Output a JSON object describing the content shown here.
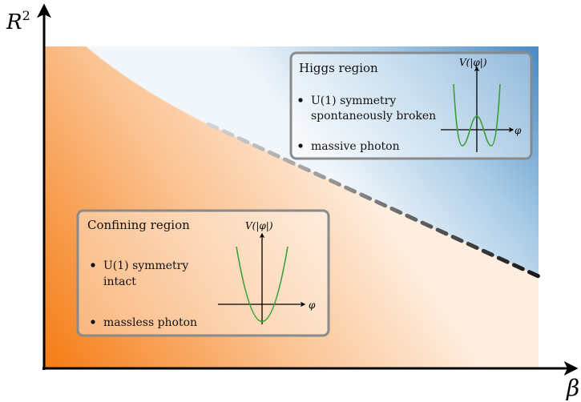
{
  "axes": {
    "y_label_base": "R",
    "y_label_exp": "2",
    "x_label": "β"
  },
  "higgs": {
    "title": "Higgs region",
    "bullets": [
      {
        "line1": "U(1) symmetry",
        "line2": "spontaneously broken"
      },
      {
        "line1": "massive photon",
        "line2": ""
      }
    ],
    "potential_label": "V(|φ|)",
    "field_label": "φ"
  },
  "confining": {
    "title": "Confining region",
    "bullets": [
      {
        "line1": "U(1) symmetry",
        "line2": "intact"
      },
      {
        "line1": "massless photon",
        "line2": ""
      }
    ],
    "potential_label": "V(|φ|)",
    "field_label": "φ"
  },
  "colors": {
    "confining_orange": "#f58220",
    "confining_light": "#fde6d0",
    "higgs_blue": "#3f86c0",
    "higgs_light": "#e6f0f8",
    "potential_green": "#3aa03a",
    "box_border": "#8a8a8a",
    "boundary_dash": "#333333"
  }
}
